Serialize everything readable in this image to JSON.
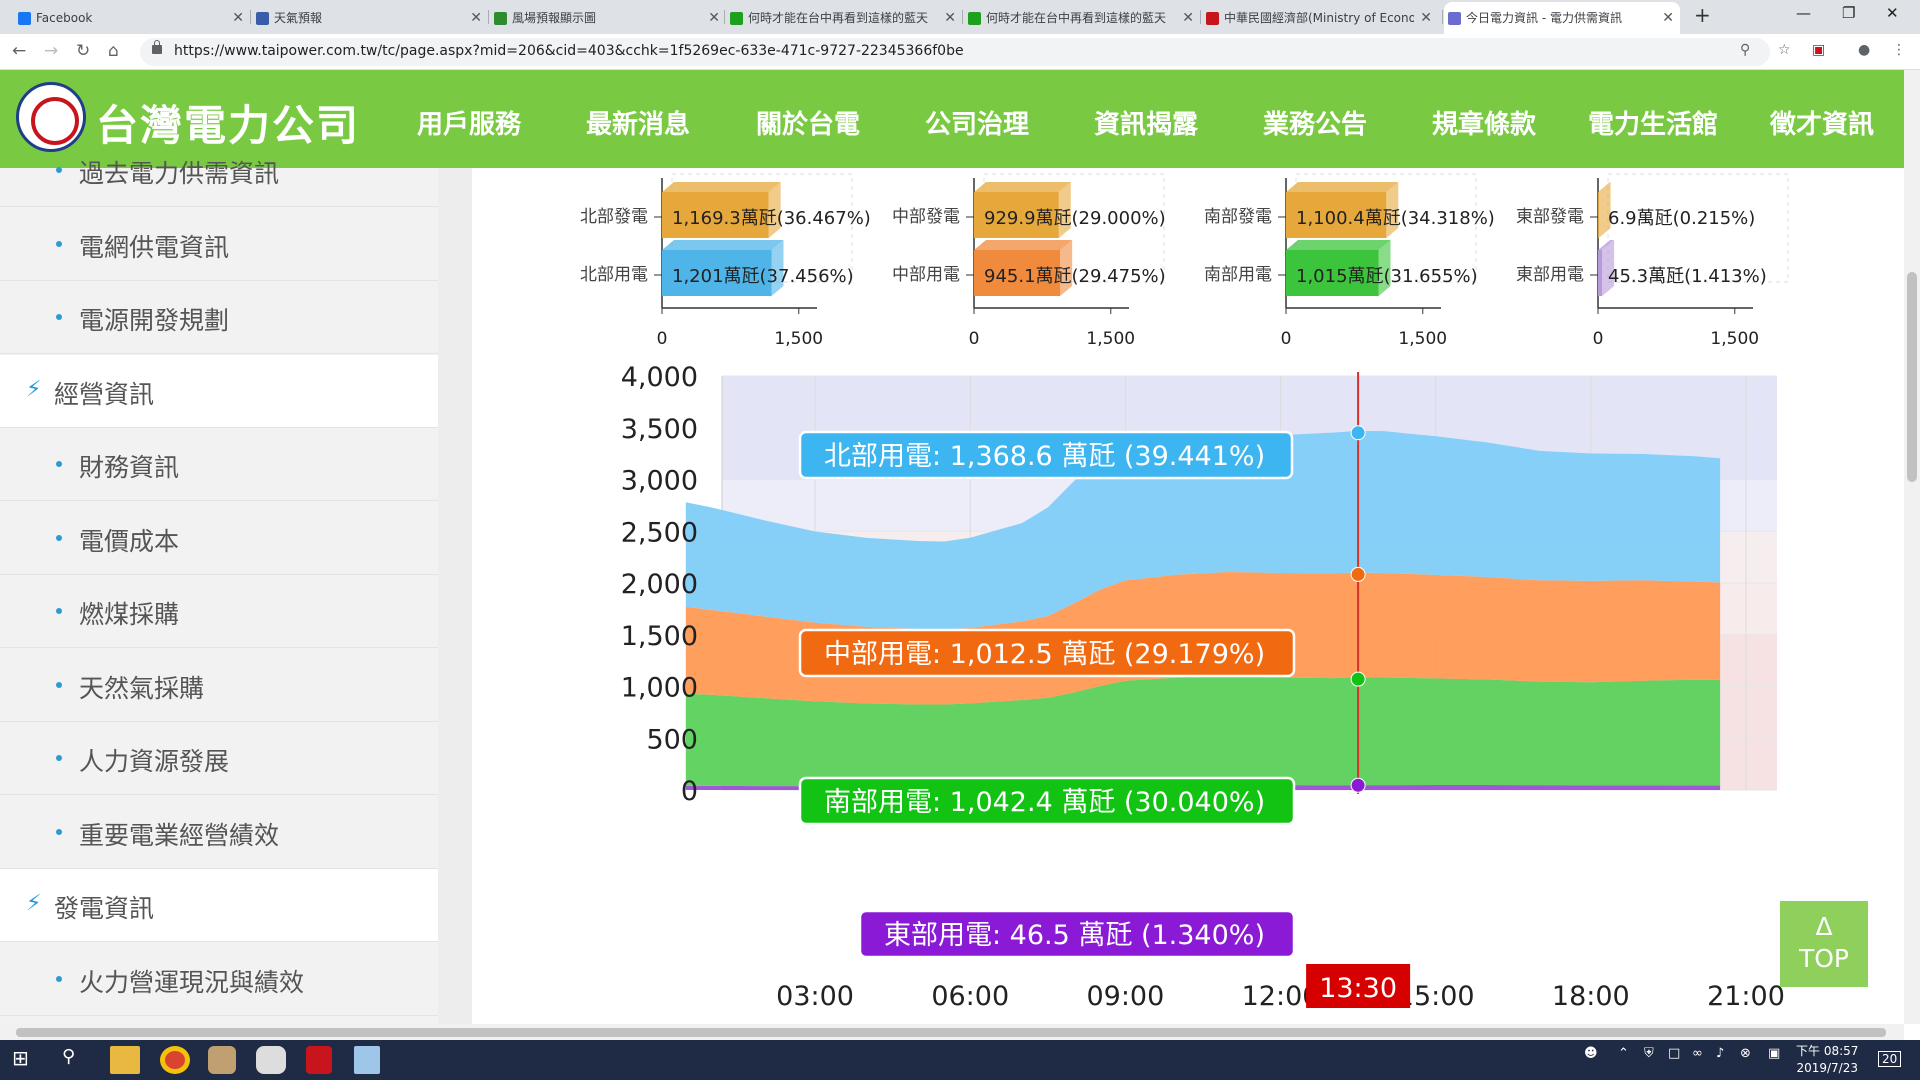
{
  "browser": {
    "tabs": [
      {
        "title": "Facebook",
        "favicon_color": "#1877f2"
      },
      {
        "title": "天氣預報",
        "favicon_color": "#3b5ca8"
      },
      {
        "title": "風場預報顯示圖",
        "favicon_color": "#2e8b2e"
      },
      {
        "title": "何時才能在台中再看到這樣的藍天",
        "favicon_color": "#1da01d"
      },
      {
        "title": "何時才能在台中再看到這樣的藍天",
        "favicon_color": "#1da01d"
      },
      {
        "title": "中華民國經濟部(Ministry of Economic Affairs)",
        "favicon_color": "#c8141d"
      },
      {
        "title": "今日電力資訊 - 電力供需資訊",
        "favicon_color": "#6b6bd0",
        "active": true
      }
    ],
    "new_tab": "+",
    "url": "https://www.taipower.com.tw/tc/page.aspx?mid=206&cid=403&cchk=1f5269ec-633e-471c-9727-22345366f0be"
  },
  "site": {
    "logo_text": "台灣電力公司",
    "menu": [
      "用戶服務",
      "最新消息",
      "關於台電",
      "公司治理",
      "資訊揭露",
      "業務公告",
      "規章條款",
      "電力生活館",
      "徵才資訊"
    ]
  },
  "sidebar": {
    "items": [
      {
        "label": "過去電力供需資訊",
        "type": "sub"
      },
      {
        "label": "電網供電資訊",
        "type": "sub"
      },
      {
        "label": "電源開發規劃",
        "type": "sub"
      },
      {
        "label": "經營資訊",
        "type": "cat"
      },
      {
        "label": "財務資訊",
        "type": "sub"
      },
      {
        "label": "電價成本",
        "type": "sub"
      },
      {
        "label": "燃煤採購",
        "type": "sub"
      },
      {
        "label": "天然氣採購",
        "type": "sub"
      },
      {
        "label": "人力資源發展",
        "type": "sub"
      },
      {
        "label": "重要電業經營績效",
        "type": "sub"
      },
      {
        "label": "發電資訊",
        "type": "cat"
      },
      {
        "label": "火力營運現況與績效",
        "type": "sub"
      }
    ]
  },
  "chart_data": [
    {
      "type": "bar",
      "region": "北部",
      "categories": [
        "北部發電",
        "北部用電"
      ],
      "values": [
        1169.3,
        1201
      ],
      "labels": [
        "1,169.3萬瓩(36.467%)",
        "1,201萬瓩(37.456%)"
      ],
      "colors": [
        "#e6a83a",
        "#4fb4e8"
      ],
      "xlim": [
        0,
        1700
      ],
      "ticks": [
        "0",
        "1,500"
      ]
    },
    {
      "type": "bar",
      "region": "中部",
      "categories": [
        "中部發電",
        "中部用電"
      ],
      "values": [
        929.9,
        945.1
      ],
      "labels": [
        "929.9萬瓩(29.000%)",
        "945.1萬瓩(29.475%)"
      ],
      "colors": [
        "#e6a83a",
        "#f08a3c"
      ],
      "xlim": [
        0,
        1700
      ],
      "ticks": [
        "0",
        "1,500"
      ]
    },
    {
      "type": "bar",
      "region": "南部",
      "categories": [
        "南部發電",
        "南部用電"
      ],
      "values": [
        1100.4,
        1015
      ],
      "labels": [
        "1,100.4萬瓩(34.318%)",
        "1,015萬瓩(31.655%)"
      ],
      "colors": [
        "#e6a83a",
        "#3cc43c"
      ],
      "xlim": [
        0,
        1700
      ],
      "ticks": [
        "0",
        "1,500"
      ]
    },
    {
      "type": "bar",
      "region": "東部",
      "categories": [
        "東部發電",
        "東部用電"
      ],
      "values": [
        6.9,
        45.3
      ],
      "labels": [
        "6.9萬瓩(0.215%)",
        "45.3萬瓩(1.413%)"
      ],
      "colors": [
        "#e6a83a",
        "#b79ad8"
      ],
      "xlim": [
        0,
        1700
      ],
      "ticks": [
        "0",
        "1,500"
      ]
    },
    {
      "type": "area",
      "stacked": true,
      "x_hours": [
        0.5,
        1,
        2,
        3,
        4,
        5,
        5.5,
        6,
        7,
        7.5,
        8,
        8.5,
        9,
        10,
        11,
        12,
        13,
        13.5,
        14,
        15,
        16,
        17,
        18,
        19,
        20,
        20.5
      ],
      "ylim": [
        0,
        4000
      ],
      "yticks": [
        "0",
        "500",
        "1,000",
        "1,500",
        "2,000",
        "2,500",
        "3,000",
        "3,500",
        "4,000"
      ],
      "xticks": [
        "03:00",
        "06:00",
        "09:00",
        "12:00",
        "15:00",
        "18:00",
        "21:00"
      ],
      "xtick_hours": [
        3,
        6,
        9,
        12,
        15,
        18,
        21
      ],
      "reserve_bands": [
        {
          "from": 3000,
          "to": 4000,
          "color": "#e3e4f6"
        },
        {
          "from": 2500,
          "to": 3000,
          "color": "#ecedf8"
        },
        {
          "from": 2000,
          "to": 2500,
          "color": "#f6eeee"
        },
        {
          "from": 1500,
          "to": 2000,
          "color": "#f8ebeb"
        },
        {
          "from": 0,
          "to": 1500,
          "color": "#f6e2e2"
        }
      ],
      "series": [
        {
          "name": "東部用電",
          "color": "#9b4fd6",
          "values": [
            40,
            40,
            38,
            37,
            36,
            36,
            36,
            37,
            39,
            40,
            42,
            44,
            45,
            46,
            46,
            47,
            46,
            46.5,
            47,
            48,
            48,
            47,
            46,
            46,
            45,
            45
          ]
        },
        {
          "name": "南部用電",
          "color": "#5bd15b",
          "values": [
            890,
            880,
            850,
            820,
            800,
            790,
            790,
            800,
            830,
            850,
            900,
            960,
            1010,
            1040,
            1050,
            1040,
            1035,
            1042.4,
            1040,
            1030,
            1020,
            1000,
            995,
            1010,
            1020,
            1020
          ]
        },
        {
          "name": "中部用電",
          "color": "#ff9a55",
          "values": [
            840,
            820,
            790,
            760,
            740,
            730,
            725,
            730,
            760,
            790,
            860,
            930,
            970,
            995,
            1010,
            1010,
            1012,
            1012.5,
            1010,
            1000,
            990,
            980,
            980,
            970,
            950,
            940
          ]
        },
        {
          "name": "北部用電",
          "color": "#7fcdf8",
          "values": [
            1010,
            990,
            930,
            880,
            860,
            850,
            850,
            870,
            950,
            1050,
            1180,
            1260,
            1270,
            1280,
            1290,
            1330,
            1360,
            1368.6,
            1370,
            1340,
            1300,
            1250,
            1230,
            1220,
            1210,
            1200
          ]
        }
      ],
      "now_label": "13:30",
      "now_hour": 13.5,
      "tooltips": [
        {
          "text": "北部用電: 1,368.6 萬瓩 (39.441%)",
          "color": "#3db5f0"
        },
        {
          "text": "中部用電: 1,012.5 萬瓩 (29.179%)",
          "color": "#f16a12"
        },
        {
          "text": "南部用電: 1,042.4 萬瓩 (30.040%)",
          "color": "#13c313"
        },
        {
          "text": "東部用電: 46.5 萬瓩 (1.340%)",
          "color": "#8a1ad6"
        }
      ]
    }
  ],
  "top_button": {
    "arrow": "Δ",
    "label": "TOP"
  },
  "taskbar": {
    "time": "下午 08:57",
    "date": "2019/7/23",
    "notif": "20"
  }
}
